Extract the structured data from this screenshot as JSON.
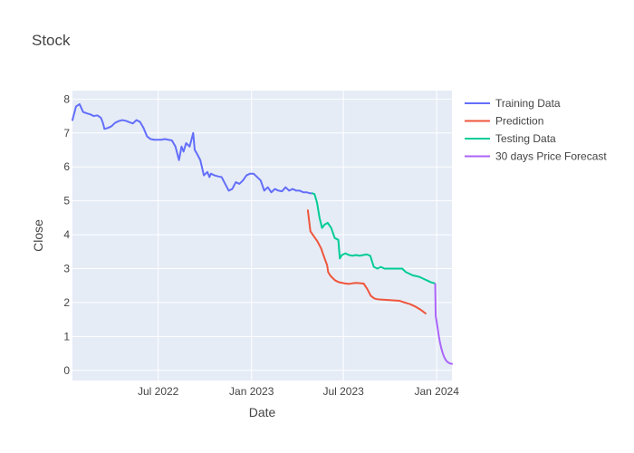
{
  "chart_data": {
    "type": "line",
    "title": "Stock",
    "xlabel": "Date",
    "ylabel": "Close",
    "x_type": "date",
    "xlim": [
      "2022-01-13",
      "2024-01-31"
    ],
    "ylim": [
      -0.3,
      8.25
    ],
    "x_ticks": [
      {
        "value": "2022-07-01",
        "label": "Jul 2022"
      },
      {
        "value": "2023-01-01",
        "label": "Jan 2023"
      },
      {
        "value": "2023-07-01",
        "label": "Jul 2023"
      },
      {
        "value": "2024-01-01",
        "label": "Jan 2024"
      }
    ],
    "y_ticks": [
      0,
      1,
      2,
      3,
      4,
      5,
      6,
      7,
      8
    ],
    "grid": true,
    "legend_position": "right",
    "series": [
      {
        "name": "Training Data",
        "color": "#636efa",
        "x": [
          "2022-01-13",
          "2022-01-20",
          "2022-01-27",
          "2022-02-03",
          "2022-02-10",
          "2022-02-17",
          "2022-02-24",
          "2022-03-03",
          "2022-03-10",
          "2022-03-14",
          "2022-03-17",
          "2022-03-24",
          "2022-03-31",
          "2022-04-07",
          "2022-04-14",
          "2022-04-21",
          "2022-04-28",
          "2022-05-05",
          "2022-05-12",
          "2022-05-19",
          "2022-05-26",
          "2022-06-02",
          "2022-06-09",
          "2022-06-16",
          "2022-06-23",
          "2022-06-30",
          "2022-07-07",
          "2022-07-14",
          "2022-07-21",
          "2022-07-28",
          "2022-08-04",
          "2022-08-11",
          "2022-08-16",
          "2022-08-20",
          "2022-08-25",
          "2022-09-01",
          "2022-09-08",
          "2022-09-11",
          "2022-09-15",
          "2022-09-22",
          "2022-09-29",
          "2022-10-06",
          "2022-10-10",
          "2022-10-13",
          "2022-10-20",
          "2022-10-27",
          "2022-11-03",
          "2022-11-10",
          "2022-11-17",
          "2022-11-24",
          "2022-12-01",
          "2022-12-08",
          "2022-12-15",
          "2022-12-22",
          "2022-12-29",
          "2023-01-05",
          "2023-01-12",
          "2023-01-19",
          "2023-01-26",
          "2023-02-02",
          "2023-02-09",
          "2023-02-16",
          "2023-02-23",
          "2023-03-02",
          "2023-03-09",
          "2023-03-16",
          "2023-03-23",
          "2023-03-30",
          "2023-04-06",
          "2023-04-13",
          "2023-04-20",
          "2023-04-27",
          "2023-05-01"
        ],
        "y": [
          7.38,
          7.78,
          7.85,
          7.62,
          7.58,
          7.55,
          7.5,
          7.52,
          7.45,
          7.3,
          7.12,
          7.15,
          7.2,
          7.3,
          7.35,
          7.38,
          7.36,
          7.32,
          7.28,
          7.38,
          7.33,
          7.15,
          6.9,
          6.82,
          6.8,
          6.8,
          6.8,
          6.82,
          6.8,
          6.78,
          6.6,
          6.2,
          6.6,
          6.45,
          6.7,
          6.6,
          7.0,
          6.5,
          6.4,
          6.2,
          5.75,
          5.85,
          5.7,
          5.8,
          5.75,
          5.72,
          5.7,
          5.5,
          5.3,
          5.35,
          5.55,
          5.5,
          5.6,
          5.75,
          5.8,
          5.8,
          5.7,
          5.6,
          5.3,
          5.4,
          5.25,
          5.35,
          5.3,
          5.28,
          5.4,
          5.3,
          5.35,
          5.3,
          5.3,
          5.25,
          5.25,
          5.22,
          5.22
        ]
      },
      {
        "name": "Prediction",
        "color": "#ef553b",
        "x": [
          "2023-04-22",
          "2023-04-27",
          "2023-05-04",
          "2023-05-11",
          "2023-05-18",
          "2023-05-25",
          "2023-05-30",
          "2023-06-01",
          "2023-06-05",
          "2023-06-08",
          "2023-06-15",
          "2023-06-22",
          "2023-06-29",
          "2023-07-06",
          "2023-07-13",
          "2023-07-20",
          "2023-07-27",
          "2023-08-03",
          "2023-08-10",
          "2023-08-17",
          "2023-08-24",
          "2023-08-31",
          "2023-09-05",
          "2023-09-10",
          "2023-09-20",
          "2023-09-30",
          "2023-10-10",
          "2023-10-20",
          "2023-10-30",
          "2023-11-10",
          "2023-11-20",
          "2023-12-01",
          "2023-12-10"
        ],
        "y": [
          4.72,
          4.1,
          3.95,
          3.8,
          3.6,
          3.3,
          3.1,
          2.9,
          2.8,
          2.75,
          2.65,
          2.6,
          2.58,
          2.56,
          2.55,
          2.57,
          2.58,
          2.57,
          2.56,
          2.4,
          2.2,
          2.12,
          2.1,
          2.09,
          2.08,
          2.07,
          2.06,
          2.05,
          2.0,
          1.95,
          1.88,
          1.78,
          1.68
        ]
      },
      {
        "name": "Testing Data",
        "color": "#00cc96",
        "x": [
          "2023-05-01",
          "2023-05-05",
          "2023-05-10",
          "2023-05-15",
          "2023-05-20",
          "2023-05-25",
          "2023-05-31",
          "2023-06-07",
          "2023-06-14",
          "2023-06-21",
          "2023-06-24",
          "2023-06-28",
          "2023-07-05",
          "2023-07-12",
          "2023-07-19",
          "2023-07-26",
          "2023-08-02",
          "2023-08-09",
          "2023-08-16",
          "2023-08-23",
          "2023-08-30",
          "2023-09-06",
          "2023-09-13",
          "2023-09-20",
          "2023-09-27",
          "2023-10-04",
          "2023-10-11",
          "2023-10-18",
          "2023-10-25",
          "2023-11-01",
          "2023-11-08",
          "2023-11-15",
          "2023-11-22",
          "2023-11-29",
          "2023-12-06",
          "2023-12-13",
          "2023-12-20",
          "2023-12-27",
          "2023-12-29"
        ],
        "y": [
          5.22,
          5.2,
          4.95,
          4.5,
          4.2,
          4.3,
          4.35,
          4.2,
          3.9,
          3.85,
          3.3,
          3.4,
          3.45,
          3.4,
          3.38,
          3.4,
          3.38,
          3.4,
          3.42,
          3.38,
          3.05,
          3.0,
          3.05,
          3.0,
          3.0,
          3.0,
          3.0,
          3.0,
          3.0,
          2.9,
          2.85,
          2.8,
          2.78,
          2.75,
          2.7,
          2.65,
          2.6,
          2.57,
          2.55
        ]
      },
      {
        "name": "30 days Price Forecast",
        "color": "#ab63fa",
        "x": [
          "2023-12-29",
          "2023-12-30",
          "2024-01-01",
          "2024-01-03",
          "2024-01-05",
          "2024-01-07",
          "2024-01-10",
          "2024-01-13",
          "2024-01-16",
          "2024-01-19",
          "2024-01-22",
          "2024-01-25",
          "2024-01-28",
          "2024-01-31"
        ],
        "y": [
          2.55,
          1.6,
          1.42,
          1.22,
          1.02,
          0.85,
          0.65,
          0.5,
          0.38,
          0.3,
          0.25,
          0.22,
          0.2,
          0.19
        ]
      }
    ]
  }
}
